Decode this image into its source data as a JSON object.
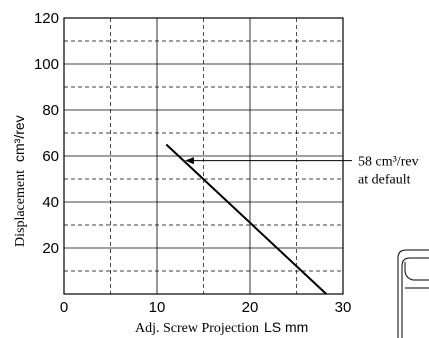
{
  "chart_data": {
    "type": "line",
    "xlabel": {
      "text": "Adj. Screw Projection",
      "unit": "LS mm"
    },
    "ylabel": {
      "text": "Displacement",
      "unit": "cm³/rev"
    },
    "xlim": [
      0,
      30
    ],
    "ylim": [
      0,
      120
    ],
    "x_ticks": [
      0,
      10,
      20,
      30
    ],
    "y_ticks": [
      20,
      40,
      60,
      80,
      100,
      120
    ],
    "x_major_gridlines": [
      10,
      20,
      30
    ],
    "x_minor_gridlines": [
      5,
      15,
      25
    ],
    "y_major_gridlines": [
      20,
      40,
      60,
      80,
      100,
      120
    ],
    "y_minor_gridlines": [
      10,
      30,
      50,
      70,
      90,
      110
    ],
    "grid": true,
    "series": [
      {
        "x": [
          11,
          28.2
        ],
        "y": [
          65,
          0
        ]
      }
    ],
    "annotation": {
      "line1": "58 cm³/rev",
      "line2": "at default",
      "points_to": {
        "x": 13,
        "y": 58
      },
      "label_anchor_y": 58
    }
  },
  "colors": {
    "axis": "#000000",
    "grid": "#000000",
    "line": "#000000",
    "background": "#ffffff"
  }
}
